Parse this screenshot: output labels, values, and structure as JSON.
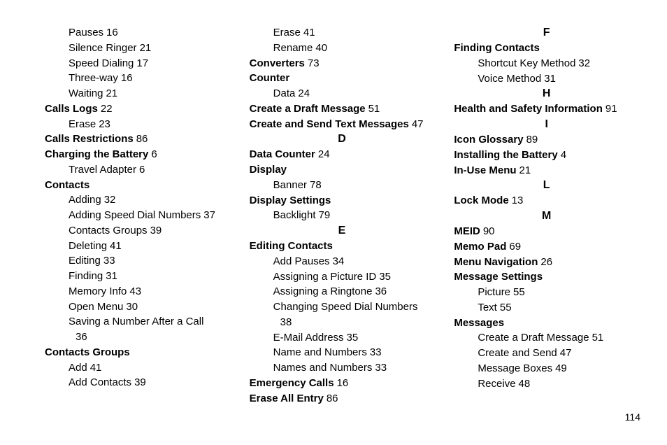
{
  "page_number": "114",
  "col1": {
    "pre_subs": [
      {
        "label": "Pauses",
        "page": "16"
      },
      {
        "label": "Silence Ringer",
        "page": "21"
      },
      {
        "label": "Speed Dialing",
        "page": "17"
      },
      {
        "label": "Three-way",
        "page": "16"
      },
      {
        "label": "Waiting",
        "page": "21"
      }
    ],
    "e1": {
      "label": "Calls Logs",
      "page": "22"
    },
    "e1_subs": [
      {
        "label": "Erase",
        "page": "23"
      }
    ],
    "e2": {
      "label": "Calls Restrictions",
      "page": "86"
    },
    "e3": {
      "label": "Charging the Battery",
      "page": "6"
    },
    "e3_subs": [
      {
        "label": "Travel Adapter",
        "page": "6"
      }
    ],
    "e4": {
      "label": "Contacts"
    },
    "e4_subs": [
      {
        "label": "Adding",
        "page": "32"
      },
      {
        "label": "Adding Speed Dial Numbers",
        "page": "37"
      },
      {
        "label": "Contacts Groups",
        "page": "39"
      },
      {
        "label": "Deleting",
        "page": "41"
      },
      {
        "label": "Editing",
        "page": "33"
      },
      {
        "label": "Finding",
        "page": "31"
      },
      {
        "label": "Memory Info",
        "page": "43"
      },
      {
        "label": "Open Menu",
        "page": "30"
      }
    ],
    "e4_wrap": {
      "line1": "Saving a Number After a Call",
      "line2": "36"
    },
    "e5": {
      "label": "Contacts Groups"
    },
    "e5_subs": [
      {
        "label": "Add",
        "page": "41"
      },
      {
        "label": "Add Contacts",
        "page": "39"
      }
    ]
  },
  "col2": {
    "pre_subs": [
      {
        "label": "Erase",
        "page": "41"
      },
      {
        "label": "Rename",
        "page": "40"
      }
    ],
    "e1": {
      "label": "Converters",
      "page": "73"
    },
    "e2": {
      "label": "Counter"
    },
    "e2_subs": [
      {
        "label": "Data",
        "page": "24"
      }
    ],
    "e3": {
      "label": "Create a Draft Message",
      "page": "51"
    },
    "e4": {
      "label": "Create and Send Text Messages",
      "page": "47"
    },
    "letD": "D",
    "e5": {
      "label": "Data Counter",
      "page": "24"
    },
    "e6": {
      "label": "Display"
    },
    "e6_subs": [
      {
        "label": "Banner",
        "page": "78"
      }
    ],
    "e7": {
      "label": "Display Settings"
    },
    "e7_subs": [
      {
        "label": "Backlight",
        "page": "79"
      }
    ],
    "letE": "E",
    "e8": {
      "label": "Editing Contacts"
    },
    "e8_subs": [
      {
        "label": "Add Pauses",
        "page": "34"
      },
      {
        "label": "Assigning a Picture ID",
        "page": "35"
      },
      {
        "label": "Assigning a Ringtone",
        "page": "36"
      }
    ],
    "e8_wrap": {
      "line1": "Changing Speed Dial Numbers",
      "line2": "38"
    },
    "e8_subs2": [
      {
        "label": "E-Mail Address",
        "page": "35"
      },
      {
        "label": "Name and Numbers",
        "page": "33"
      },
      {
        "label": "Names and Numbers",
        "page": "33"
      }
    ],
    "e9": {
      "label": "Emergency Calls",
      "page": "16"
    },
    "e10": {
      "label": "Erase All Entry",
      "page": "86"
    }
  },
  "col3": {
    "letF": "F",
    "e1": {
      "label": "Finding Contacts"
    },
    "e1_subs": [
      {
        "label": "Shortcut Key Method",
        "page": "32"
      },
      {
        "label": "Voice Method",
        "page": "31"
      }
    ],
    "letH": "H",
    "e2": {
      "label": "Health and Safety Information",
      "page": "91"
    },
    "letI": "I",
    "e3": {
      "label": "Icon Glossary",
      "page": "89"
    },
    "e4": {
      "label": "Installing the Battery",
      "page": "4"
    },
    "e5": {
      "label": "In-Use Menu",
      "page": "21"
    },
    "letL": "L",
    "e6": {
      "label": "Lock Mode",
      "page": "13"
    },
    "letM": "M",
    "e7": {
      "label": "MEID",
      "page": "90"
    },
    "e8": {
      "label": "Memo Pad",
      "page": "69"
    },
    "e9": {
      "label": "Menu Navigation",
      "page": "26"
    },
    "e10": {
      "label": "Message Settings"
    },
    "e10_subs": [
      {
        "label": "Picture",
        "page": "55"
      },
      {
        "label": "Text",
        "page": "55"
      }
    ],
    "e11": {
      "label": "Messages"
    },
    "e11_subs": [
      {
        "label": "Create a Draft Message",
        "page": "51"
      },
      {
        "label": "Create and Send",
        "page": "47"
      },
      {
        "label": "Message Boxes",
        "page": "49"
      },
      {
        "label": "Receive",
        "page": "48"
      }
    ]
  }
}
